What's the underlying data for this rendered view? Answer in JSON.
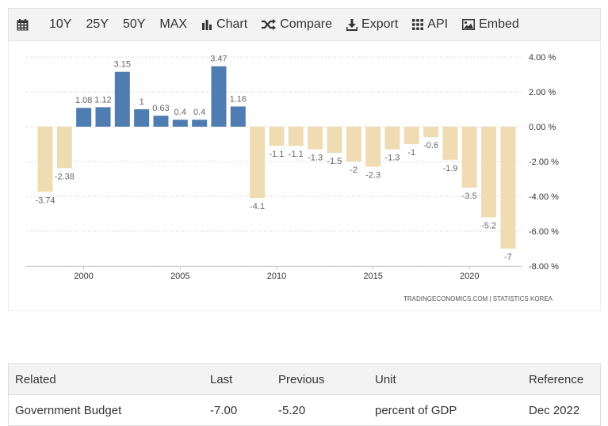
{
  "toolbar": {
    "items": [
      {
        "label": "10Y"
      },
      {
        "label": "25Y"
      },
      {
        "label": "50Y"
      },
      {
        "label": "MAX"
      },
      {
        "label": "Chart",
        "icon": "bar-chart-icon"
      },
      {
        "label": "Compare",
        "icon": "shuffle-icon"
      },
      {
        "label": "Export",
        "icon": "download-icon"
      },
      {
        "label": "API",
        "icon": "grid-icon"
      },
      {
        "label": "Embed",
        "icon": "image-icon"
      }
    ],
    "calendar_icon": "calendar-icon"
  },
  "chart_data": {
    "type": "bar",
    "x": [
      1998,
      1999,
      2000,
      2001,
      2002,
      2003,
      2004,
      2005,
      2006,
      2007,
      2008,
      2009,
      2010,
      2011,
      2012,
      2013,
      2014,
      2015,
      2016,
      2017,
      2018,
      2019,
      2020,
      2021,
      2022
    ],
    "values": [
      -3.74,
      -2.38,
      1.08,
      1.12,
      3.15,
      1,
      0.63,
      0.4,
      0.4,
      3.47,
      1.16,
      -4.1,
      -1.1,
      -1.1,
      -1.3,
      -1.5,
      -2,
      -2.3,
      -1.3,
      -1,
      -0.6,
      -1.9,
      -3.5,
      -5.2,
      -7
    ],
    "data_labels": [
      "-3.74",
      "-2.38",
      "1.08",
      "1.12",
      "3.15",
      "1",
      "0.63",
      "0.4",
      "0.4",
      "3.47",
      "1.16",
      "-4.1",
      "-1.1",
      "-1.1",
      "-1.3",
      "-1.5",
      "-2",
      "-2.3",
      "-1.3",
      "-1",
      "-0.6",
      "-1.9",
      "-3.5",
      "-5.2",
      "-7"
    ],
    "x_ticks": [
      "2000",
      "2005",
      "2010",
      "2015",
      "2020"
    ],
    "y_ticks": [
      "4.00 %",
      "2.00 %",
      "0.00 %",
      "-2.00 %",
      "-4.00 %",
      "-6.00 %",
      "-8.00 %"
    ],
    "ylim": [
      -8,
      4
    ],
    "grid": true,
    "colors": {
      "positive": "#4f7cb1",
      "negative": "#f0dcb3",
      "label": "#666666",
      "grid": "#c8c8c8"
    },
    "source": "TRADINGECONOMICS.COM  |  STATISTICS KOREA"
  },
  "table": {
    "headers": [
      "Related",
      "Last",
      "Previous",
      "Unit",
      "Reference"
    ],
    "rows": [
      [
        "Government Budget",
        "-7.00",
        "-5.20",
        "percent of GDP",
        "Dec 2022"
      ]
    ]
  }
}
